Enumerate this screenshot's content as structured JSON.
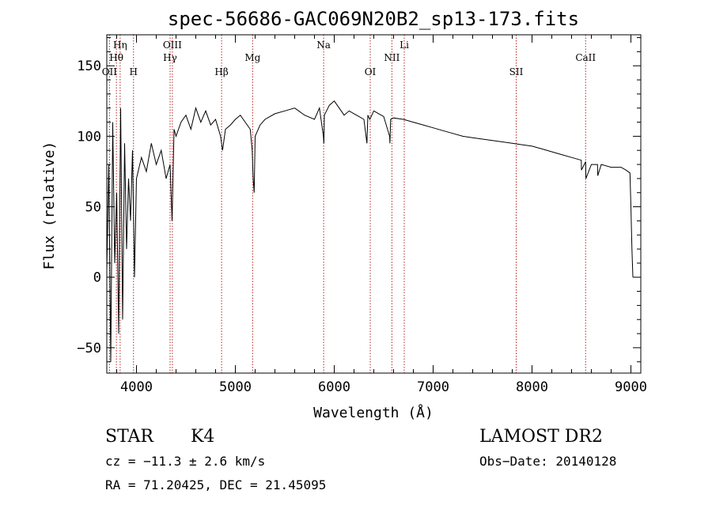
{
  "chart_data": {
    "type": "line",
    "title": "spec-56686-GAC069N20B2_sp13-173.fits",
    "xlabel": "Wavelength (Å)",
    "ylabel": "Flux (relative)",
    "xlim": [
      3700,
      9100
    ],
    "ylim": [
      -68,
      172
    ],
    "x_ticks": [
      4000,
      5000,
      6000,
      7000,
      8000,
      9000
    ],
    "y_ticks": [
      -50,
      0,
      50,
      100,
      150
    ],
    "x_tick_labels": [
      "4000",
      "5000",
      "6000",
      "7000",
      "8000",
      "9000"
    ],
    "y_tick_labels": [
      "−50",
      "0",
      "50",
      "100",
      "150"
    ],
    "line_color": "#000000",
    "marker_color": "#b22222",
    "series": [
      {
        "x": [
          3700,
          3720,
          3740,
          3760,
          3780,
          3800,
          3820,
          3840,
          3860,
          3880,
          3900,
          3920,
          3940,
          3960,
          3980,
          4000,
          4050,
          4100,
          4150,
          4200,
          4250,
          4300,
          4340,
          4360,
          4380,
          4400,
          4450,
          4500,
          4550,
          4600,
          4650,
          4700,
          4750,
          4800,
          4850,
          4870,
          4900,
          4950,
          5000,
          5050,
          5100,
          5150,
          5170,
          5180,
          5190,
          5200,
          5250,
          5300,
          5400,
          5500,
          5600,
          5700,
          5800,
          5850,
          5890,
          5895,
          5900,
          5950,
          6000,
          6050,
          6100,
          6150,
          6200,
          6250,
          6300,
          6330,
          6340,
          6360,
          6400,
          6450,
          6500,
          6560,
          6563,
          6570,
          6600,
          6700,
          6800,
          6900,
          7000,
          7100,
          7200,
          7300,
          7400,
          7500,
          7600,
          7700,
          7800,
          7900,
          8000,
          8100,
          8200,
          8300,
          8400,
          8498,
          8500,
          8542,
          8545,
          8600,
          8662,
          8665,
          8700,
          8800,
          8900,
          8950,
          8990,
          9000,
          9010,
          9020
        ],
        "y": [
          5,
          80,
          -60,
          110,
          10,
          60,
          -40,
          120,
          -30,
          95,
          20,
          70,
          40,
          90,
          0,
          70,
          85,
          75,
          95,
          80,
          90,
          70,
          80,
          40,
          105,
          100,
          110,
          115,
          105,
          120,
          110,
          118,
          108,
          112,
          100,
          90,
          105,
          108,
          112,
          115,
          110,
          105,
          90,
          70,
          60,
          100,
          108,
          112,
          116,
          118,
          120,
          115,
          112,
          120,
          100,
          95,
          115,
          122,
          125,
          120,
          115,
          118,
          116,
          114,
          112,
          95,
          115,
          112,
          118,
          116,
          114,
          100,
          95,
          112,
          113,
          112,
          110,
          108,
          106,
          104,
          102,
          100,
          99,
          98,
          97,
          96,
          95,
          94,
          93,
          91,
          89,
          87,
          85,
          83,
          76,
          82,
          70,
          80,
          80,
          72,
          80,
          78,
          78,
          76,
          74,
          50,
          20,
          0
        ]
      }
    ],
    "lines": [
      {
        "label": "Hη",
        "wl": 3835,
        "row": 0
      },
      {
        "label": "Hθ",
        "wl": 3797,
        "row": 1
      },
      {
        "label": "OII",
        "wl": 3727,
        "row": 2
      },
      {
        "label": "H",
        "wl": 3970,
        "row": 2
      },
      {
        "label": "OIII",
        "wl": 4363,
        "row": 0
      },
      {
        "label": "Hγ",
        "wl": 4340,
        "row": 1
      },
      {
        "label": "Hβ",
        "wl": 4861,
        "row": 2
      },
      {
        "label": "Mg",
        "wl": 5175,
        "row": 1
      },
      {
        "label": "Na",
        "wl": 5893,
        "row": 0
      },
      {
        "label": "OI",
        "wl": 6364,
        "row": 2
      },
      {
        "label": "NII",
        "wl": 6583,
        "row": 1
      },
      {
        "label": "Li",
        "wl": 6708,
        "row": 0
      },
      {
        "label": "SII",
        "wl": 7840,
        "row": 2
      },
      {
        "label": "CaII",
        "wl": 8542,
        "row": 1
      }
    ]
  },
  "info": {
    "object": "STAR",
    "subclass": "K4",
    "survey": "LAMOST DR2",
    "cz": "cz = −11.3 ± 2.6 km/s",
    "obs_date": "Obs−Date: 20140128",
    "radec": "RA =  71.20425, DEC =  21.45095"
  }
}
